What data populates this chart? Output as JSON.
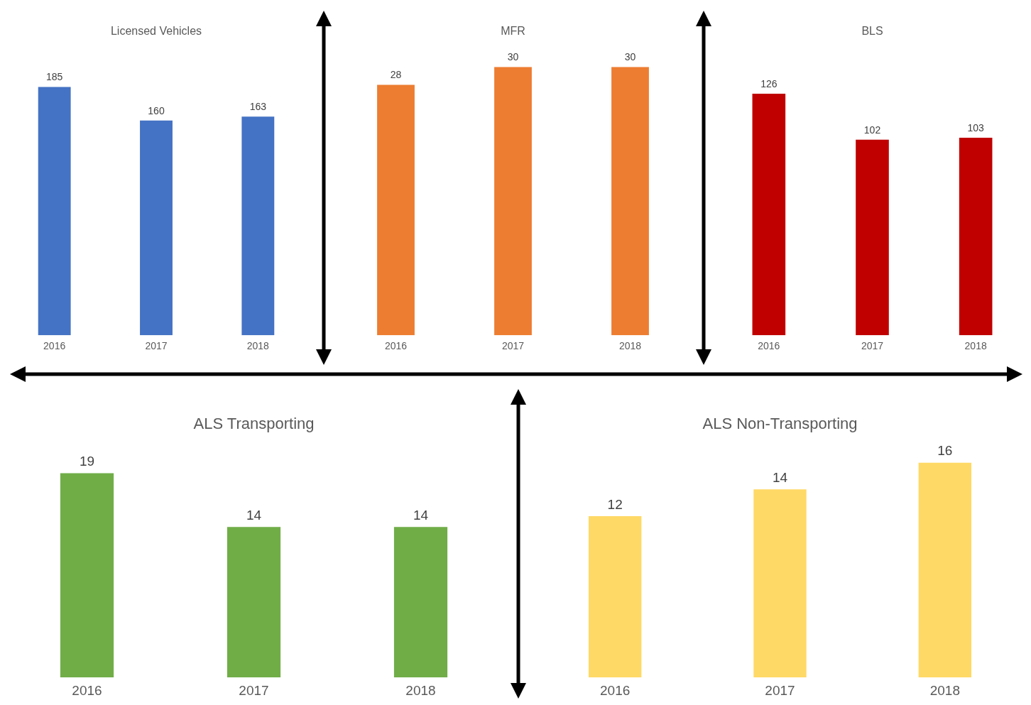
{
  "chart_data": [
    {
      "type": "bar",
      "title": "Licensed Vehicles",
      "categories": [
        "2016",
        "2017",
        "2018"
      ],
      "values": [
        185,
        160,
        163
      ],
      "color": "#4472c4",
      "data_labels": true
    },
    {
      "type": "bar",
      "title": "MFR",
      "categories": [
        "2016",
        "2017",
        "2018"
      ],
      "values": [
        28,
        30,
        30
      ],
      "color": "#ed7d31",
      "data_labels": true
    },
    {
      "type": "bar",
      "title": "BLS",
      "categories": [
        "2016",
        "2017",
        "2018"
      ],
      "values": [
        126,
        102,
        103
      ],
      "color": "#c00000",
      "data_labels": true
    },
    {
      "type": "bar",
      "title": "ALS Transporting",
      "categories": [
        "2016",
        "2017",
        "2018"
      ],
      "values": [
        19,
        14,
        14
      ],
      "color": "#70ad47",
      "data_labels": true
    },
    {
      "type": "bar",
      "title": "ALS Non-Transporting",
      "categories": [
        "2016",
        "2017",
        "2018"
      ],
      "values": [
        12,
        14,
        16
      ],
      "color": "#ffd966",
      "data_labels": true
    }
  ]
}
